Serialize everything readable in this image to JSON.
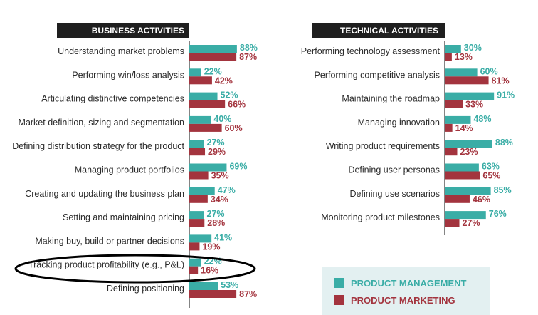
{
  "colors": {
    "product_management": "#3aada6",
    "product_marketing": "#a3343e"
  },
  "chart_data": [
    {
      "type": "bar",
      "title": "BUSINESS ACTIVITIES",
      "orientation": "horizontal",
      "categories": [
        "Understanding market problems",
        "Performing win/loss analysis",
        "Articulating distinctive competencies",
        "Market definition, sizing and segmentation",
        "Defining distribution strategy for the product",
        "Managing product portfolios",
        "Creating and updating the business plan",
        "Setting and maintaining pricing",
        "Making buy, build or partner decisions",
        "Tracking product profitability (e.g., P&L)",
        "Defining positioning"
      ],
      "series": [
        {
          "name": "PRODUCT MANAGEMENT",
          "values": [
            88,
            22,
            52,
            40,
            27,
            69,
            47,
            27,
            41,
            22,
            53
          ]
        },
        {
          "name": "PRODUCT MARKETING",
          "values": [
            87,
            42,
            66,
            60,
            29,
            35,
            34,
            28,
            19,
            16,
            87
          ]
        }
      ],
      "unit": "%",
      "annotation": "Tracking product profitability (e.g., P&L) circled"
    },
    {
      "type": "bar",
      "title": "TECHNICAL ACTIVITIES",
      "orientation": "horizontal",
      "categories": [
        "Performing technology assessment",
        "Performing competitive analysis",
        "Maintaining the roadmap",
        "Managing innovation",
        "Writing product requirements",
        "Defining user personas",
        "Defining use scenarios",
        "Monitoring product milestones"
      ],
      "series": [
        {
          "name": "PRODUCT MANAGEMENT",
          "values": [
            30,
            60,
            91,
            48,
            88,
            63,
            85,
            76
          ]
        },
        {
          "name": "PRODUCT MARKETING",
          "values": [
            13,
            81,
            33,
            14,
            23,
            65,
            46,
            27
          ]
        }
      ],
      "unit": "%"
    }
  ],
  "legend": {
    "position": "bottom-right",
    "items": [
      "PRODUCT MANAGEMENT",
      "PRODUCT MARKETING"
    ]
  }
}
